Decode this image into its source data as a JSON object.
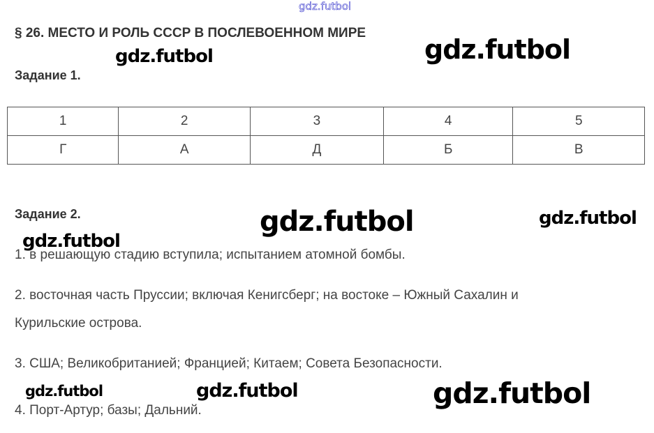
{
  "title": "§ 26. МЕСТО И РОЛЬ СССР В ПОСЛЕВОЕННОМ МИРЕ",
  "task1": {
    "heading": "Задание 1.",
    "table": {
      "numbers": [
        "1",
        "2",
        "3",
        "4",
        "5"
      ],
      "answers": [
        "Г",
        "А",
        "Д",
        "Б",
        "В"
      ]
    }
  },
  "task2": {
    "heading": "Задание 2.",
    "lines": [
      "1. в решающую стадию вступила; испытанием атомной бомбы.",
      "2. восточная часть Пруссии; включая Кенигсберг; на востоке – Южный Сахалин и",
      "Курильские острова.",
      "3. США; Великобританией; Францией; Китаем; Совета Безопасности.",
      "4. Порт-Артур; базы; Дальний."
    ]
  },
  "watermark": "gdz.futbol"
}
